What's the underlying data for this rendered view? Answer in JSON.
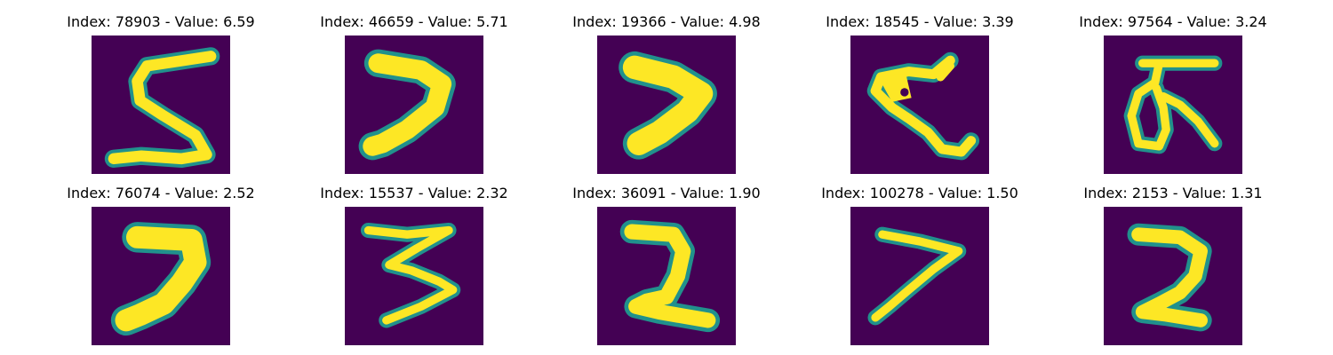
{
  "colors": {
    "background": "#440154",
    "stroke_edge": "#21918c",
    "stroke_mid": "#5ec962",
    "stroke_core": "#fde725"
  },
  "panels": [
    {
      "title": "Index: 78903 - Value: 6.59",
      "digit": "5"
    },
    {
      "title": "Index: 46659 - Value: 5.71",
      "digit": "7"
    },
    {
      "title": "Index: 19366 - Value: 4.98",
      "digit": "7"
    },
    {
      "title": "Index: 18545 - Value: 3.39",
      "digit": "stroke"
    },
    {
      "title": "Index: 97564 - Value: 3.24",
      "digit": "5"
    },
    {
      "title": "Index: 76074 - Value: 2.52",
      "digit": "7"
    },
    {
      "title": "Index: 15537 - Value: 2.32",
      "digit": "3"
    },
    {
      "title": "Index: 36091 - Value: 1.90",
      "digit": "2"
    },
    {
      "title": "Index: 100278 - Value: 1.50",
      "digit": "7"
    },
    {
      "title": "Index: 2153 - Value: 1.31",
      "digit": "2"
    }
  ]
}
